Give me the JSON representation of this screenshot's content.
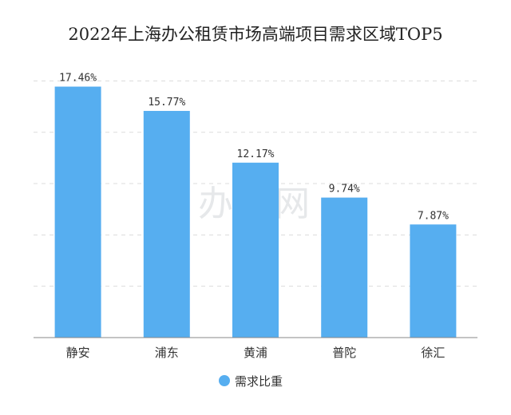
{
  "chart_data": {
    "type": "bar",
    "title": "2022年上海办公租赁市场高端项目需求区域TOP5",
    "categories": [
      "静安",
      "浦东",
      "黄浦",
      "普陀",
      "徐汇"
    ],
    "series": [
      {
        "name": "需求比重",
        "values": [
          17.46,
          15.77,
          12.17,
          9.74,
          7.87
        ],
        "color": "#56aef0"
      }
    ],
    "data_labels": [
      "17.46%",
      "15.77%",
      "12.17%",
      "9.74%",
      "7.87%"
    ],
    "unit": "%",
    "ylim": [
      0,
      18.6
    ],
    "grid": true,
    "legend_position": "bottom-center",
    "xlabel": "",
    "ylabel": ""
  },
  "watermark": "办办网"
}
